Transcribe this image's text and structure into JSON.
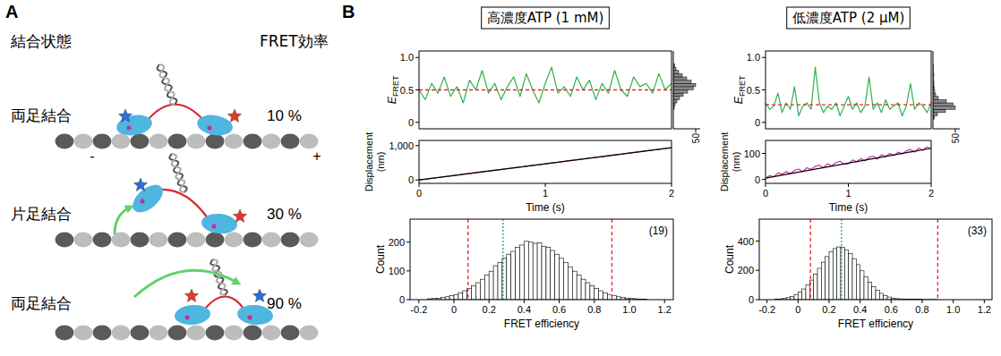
{
  "diagram": {
    "letter": "A",
    "headers": [
      "結合状態",
      "FRET効率"
    ],
    "rows": [
      {
        "state": "両足結合",
        "fret": "10 %"
      },
      {
        "state": "片足結合",
        "fret": "30 %"
      },
      {
        "state": "両足結合",
        "fret": "90 %"
      }
    ],
    "minus": "-",
    "plus": "+"
  },
  "panel_b": {
    "letter": "B",
    "columns": [
      "高濃度ATP (1 mM)",
      "低濃度ATP (2 μM)"
    ]
  },
  "chart_data": [
    {
      "type": "line",
      "xlim": [
        0,
        2
      ],
      "ylim": [
        -0.1,
        1.1
      ],
      "yticks": [
        0,
        0.5,
        {
          "value": 1,
          "label": "1.0"
        }
      ],
      "ylabel": "EFRET",
      "tick_labels": "y",
      "x": [
        0,
        0.05,
        0.1,
        0.15,
        0.2,
        0.25,
        0.3,
        0.35,
        0.4,
        0.45,
        0.5,
        0.55,
        0.6,
        0.65,
        0.7,
        0.75,
        0.8,
        0.85,
        0.9,
        0.95,
        1,
        1.05,
        1.1,
        1.15,
        1.2,
        1.25,
        1.3,
        1.35,
        1.4,
        1.45,
        1.5,
        1.55,
        1.6,
        1.65,
        1.7,
        1.75,
        1.8,
        1.85,
        1.9,
        1.95,
        2
      ],
      "series": [
        {
          "color": "#2db34a",
          "values": [
            0.5,
            0.35,
            0.6,
            0.45,
            0.7,
            0.4,
            0.55,
            0.3,
            0.65,
            0.5,
            0.8,
            0.45,
            0.6,
            0.35,
            0.55,
            0.7,
            0.4,
            0.75,
            0.5,
            0.3,
            0.6,
            0.85,
            0.45,
            0.55,
            0.4,
            0.7,
            0.5,
            0.65,
            0.35,
            0.6,
            0.45,
            0.8,
            0.5,
            0.4,
            0.7,
            0.55,
            0.6,
            0.45,
            0.75,
            0.5,
            0.6
          ]
        }
      ],
      "hlines": [
        {
          "value": 0.5,
          "color": "#e8262a",
          "line_style": "dashed"
        }
      ]
    },
    {
      "type": "histogram",
      "orientation": "horizontal",
      "color": "#888888",
      "bins": [
        0.2,
        0.25,
        0.3,
        0.35,
        0.4,
        0.45,
        0.5,
        0.55,
        0.6,
        0.65,
        0.7,
        0.75,
        0.8,
        0.85,
        0.9
      ],
      "values": [
        2,
        4,
        8,
        14,
        22,
        32,
        45,
        50,
        40,
        30,
        20,
        12,
        6,
        3
      ],
      "xlim": [
        0,
        60
      ],
      "xticks": [
        50
      ],
      "ylim": [
        -0.1,
        1.1
      ],
      "tick_labels": "x"
    },
    {
      "type": "line",
      "xlim": [
        0,
        2
      ],
      "xticks": [
        0,
        1,
        2
      ],
      "xlabel": "Time (s)",
      "ylim": [
        -100,
        1150
      ],
      "yticks": [
        0,
        {
          "value": 1000,
          "label": "1,000"
        }
      ],
      "ylabel": "Displacement (nm)",
      "x": [
        0,
        0.05,
        0.1,
        0.15,
        0.2,
        0.25,
        0.3,
        0.35,
        0.4,
        0.45,
        0.5,
        0.55,
        0.6,
        0.65,
        0.7,
        0.75,
        0.8,
        0.85,
        0.9,
        0.95,
        1,
        1.05,
        1.1,
        1.15,
        1.2,
        1.25,
        1.3,
        1.35,
        1.4,
        1.45,
        1.5,
        1.55,
        1.6,
        1.65,
        1.7,
        1.75,
        1.8,
        1.85,
        1.9,
        1.95,
        2
      ],
      "series": [
        {
          "color": "#c8329a",
          "values": [
            0,
            20,
            45,
            70,
            95,
            118,
            140,
            170,
            190,
            215,
            240,
            262,
            285,
            305,
            330,
            355,
            375,
            400,
            425,
            445,
            470,
            495,
            515,
            540,
            565,
            585,
            610,
            635,
            660,
            680,
            705,
            730,
            750,
            775,
            800,
            820,
            845,
            870,
            895,
            915,
            940
          ]
        },
        {
          "color": "#000000",
          "x": [
            0,
            2
          ],
          "values": [
            0,
            940
          ]
        }
      ]
    },
    {
      "type": "line",
      "xlim": [
        0,
        2
      ],
      "ylim": [
        -0.1,
        1.1
      ],
      "yticks": [
        0,
        0.5,
        {
          "value": 1,
          "label": "1.0"
        }
      ],
      "ylabel": "EFRET",
      "tick_labels": "y",
      "x": [
        0,
        0.05,
        0.1,
        0.15,
        0.2,
        0.25,
        0.3,
        0.35,
        0.4,
        0.45,
        0.5,
        0.55,
        0.6,
        0.65,
        0.7,
        0.75,
        0.8,
        0.85,
        0.9,
        0.95,
        1,
        1.05,
        1.1,
        1.15,
        1.2,
        1.25,
        1.3,
        1.35,
        1.4,
        1.45,
        1.5,
        1.55,
        1.6,
        1.65,
        1.7,
        1.75,
        1.8,
        1.85,
        1.9,
        1.95,
        2
      ],
      "series": [
        {
          "color": "#2db34a",
          "values": [
            0.3,
            0.2,
            0.25,
            0.45,
            0.15,
            0.3,
            0.2,
            0.55,
            0.1,
            0.25,
            0.3,
            0.2,
            0.85,
            0.3,
            0.15,
            0.25,
            0.2,
            0.3,
            0.1,
            0.25,
            0.4,
            0.2,
            0.3,
            0.15,
            0.25,
            0.7,
            0.2,
            0.3,
            0.15,
            0.35,
            0.2,
            0.25,
            0.3,
            0.1,
            0.25,
            0.6,
            0.2,
            0.3,
            0.25,
            0.15,
            0.3
          ]
        }
      ],
      "hlines": [
        {
          "value": 0.27,
          "color": "#e8262a",
          "line_style": "dashed"
        }
      ]
    },
    {
      "type": "histogram",
      "orientation": "horizontal",
      "color": "#888888",
      "bins": [
        0.05,
        0.1,
        0.15,
        0.2,
        0.25,
        0.3,
        0.35,
        0.4,
        0.45,
        0.5,
        0.55,
        0.6,
        0.65,
        0.7,
        0.75,
        0.8,
        0.85,
        0.9
      ],
      "values": [
        3,
        10,
        28,
        50,
        45,
        30,
        12,
        6,
        4,
        3,
        2,
        2,
        1,
        2,
        1,
        1,
        1
      ],
      "xlim": [
        0,
        60
      ],
      "xticks": [
        50
      ],
      "ylim": [
        -0.1,
        1.1
      ],
      "tick_labels": "x"
    },
    {
      "type": "line",
      "xlim": [
        0,
        2
      ],
      "xticks": [
        0,
        1,
        2
      ],
      "xlabel": "Time (s)",
      "ylim": [
        -15,
        150
      ],
      "yticks": [
        0,
        100
      ],
      "ylabel": "Displacement (nm)",
      "x": [
        0,
        0.05,
        0.1,
        0.15,
        0.2,
        0.25,
        0.3,
        0.35,
        0.4,
        0.45,
        0.5,
        0.55,
        0.6,
        0.65,
        0.7,
        0.75,
        0.8,
        0.85,
        0.9,
        0.95,
        1,
        1.05,
        1.1,
        1.15,
        1.2,
        1.25,
        1.3,
        1.35,
        1.4,
        1.45,
        1.5,
        1.55,
        1.6,
        1.65,
        1.7,
        1.75,
        1.8,
        1.85,
        1.9,
        1.95,
        2
      ],
      "series": [
        {
          "color": "#c8329a",
          "values": [
            5,
            15,
            10,
            25,
            20,
            30,
            22,
            35,
            40,
            30,
            45,
            38,
            50,
            55,
            45,
            60,
            52,
            65,
            70,
            58,
            60,
            75,
            68,
            80,
            72,
            85,
            90,
            78,
            95,
            88,
            100,
            92,
            105,
            98,
            110,
            115,
            105,
            120,
            112,
            125,
            118
          ]
        },
        {
          "color": "#000000",
          "x": [
            0,
            2
          ],
          "values": [
            5,
            120
          ]
        }
      ]
    },
    {
      "type": "histogram",
      "color": "#ffffff",
      "bins": [
        -0.15,
        -0.125,
        -0.1,
        -0.075,
        -0.05,
        -0.025,
        0,
        0.025,
        0.05,
        0.075,
        0.1,
        0.125,
        0.15,
        0.175,
        0.2,
        0.225,
        0.25,
        0.275,
        0.3,
        0.325,
        0.35,
        0.375,
        0.4,
        0.425,
        0.45,
        0.475,
        0.5,
        0.525,
        0.55,
        0.575,
        0.6,
        0.625,
        0.65,
        0.675,
        0.7,
        0.725,
        0.75,
        0.775,
        0.8,
        0.825,
        0.85,
        0.875,
        0.9,
        0.925,
        0.95,
        0.975,
        1,
        1.025,
        1.05,
        1.075,
        1.1
      ],
      "values": [
        3,
        4,
        5,
        8,
        10,
        14,
        18,
        24,
        31,
        39,
        48,
        59,
        71,
        85,
        99,
        118,
        129,
        144,
        158,
        168,
        182,
        190,
        203,
        200,
        196,
        197,
        186,
        182,
        171,
        158,
        144,
        129,
        114,
        99,
        85,
        71,
        59,
        48,
        39,
        31,
        24,
        18,
        14,
        10,
        8,
        5,
        4,
        3,
        2,
        1
      ],
      "xlim": [
        -0.25,
        1.25
      ],
      "xticks": [
        -0.2,
        0,
        0.2,
        0.4,
        0.6,
        0.8,
        {
          "value": 1,
          "label": "1.0"
        },
        1.2
      ],
      "ylim": [
        0,
        280
      ],
      "yticks": [
        0,
        100,
        200
      ],
      "xlabel": "FRET efficiency",
      "ylabel": "Count",
      "annotation": "(19)",
      "vlines": [
        {
          "value": 0.08,
          "color": "#e8262a",
          "line_style": "dashed"
        },
        {
          "value": 0.28,
          "color": "#22a64a",
          "line_style": "dotted"
        },
        {
          "value": 0.9,
          "color": "#e8262a",
          "line_style": "dashed"
        }
      ]
    },
    {
      "type": "histogram",
      "color": "#ffffff",
      "bins": [
        -0.15,
        -0.125,
        -0.1,
        -0.075,
        -0.05,
        -0.025,
        0,
        0.025,
        0.05,
        0.075,
        0.1,
        0.125,
        0.15,
        0.175,
        0.2,
        0.225,
        0.25,
        0.275,
        0.3,
        0.325,
        0.35,
        0.375,
        0.4,
        0.425,
        0.45,
        0.475,
        0.5,
        0.525,
        0.55,
        0.575,
        0.6,
        0.625,
        0.65,
        0.675,
        0.7,
        0.725,
        0.75,
        0.775,
        0.8,
        0.825,
        0.85,
        0.875,
        0.9,
        0.925,
        0.95,
        0.975,
        1,
        1.025,
        1.05,
        1.075,
        1.1
      ],
      "values": [
        3,
        5,
        8,
        14,
        22,
        34,
        51,
        73,
        101,
        134,
        173,
        214,
        256,
        294,
        326,
        349,
        360,
        357,
        341,
        315,
        280,
        239,
        197,
        157,
        120,
        89,
        63,
        43,
        29,
        18,
        11,
        7,
        5,
        4,
        3,
        3,
        2,
        2,
        1,
        1,
        1,
        1,
        0,
        0,
        0,
        0,
        0,
        0,
        0,
        0
      ],
      "xlim": [
        -0.25,
        1.25
      ],
      "xticks": [
        -0.2,
        0,
        0.2,
        0.4,
        0.6,
        0.8,
        {
          "value": 1,
          "label": "1.0"
        },
        1.2
      ],
      "ylim": [
        0,
        550
      ],
      "yticks": [
        0,
        200,
        400
      ],
      "xlabel": "FRET efficiency",
      "ylabel": "Count",
      "annotation": "(33)",
      "vlines": [
        {
          "value": 0.08,
          "color": "#e8262a",
          "line_style": "dashed"
        },
        {
          "value": 0.28,
          "color": "#22a64a",
          "line_style": "dotted"
        },
        {
          "value": 0.9,
          "color": "#e8262a",
          "line_style": "dashed"
        }
      ]
    }
  ]
}
